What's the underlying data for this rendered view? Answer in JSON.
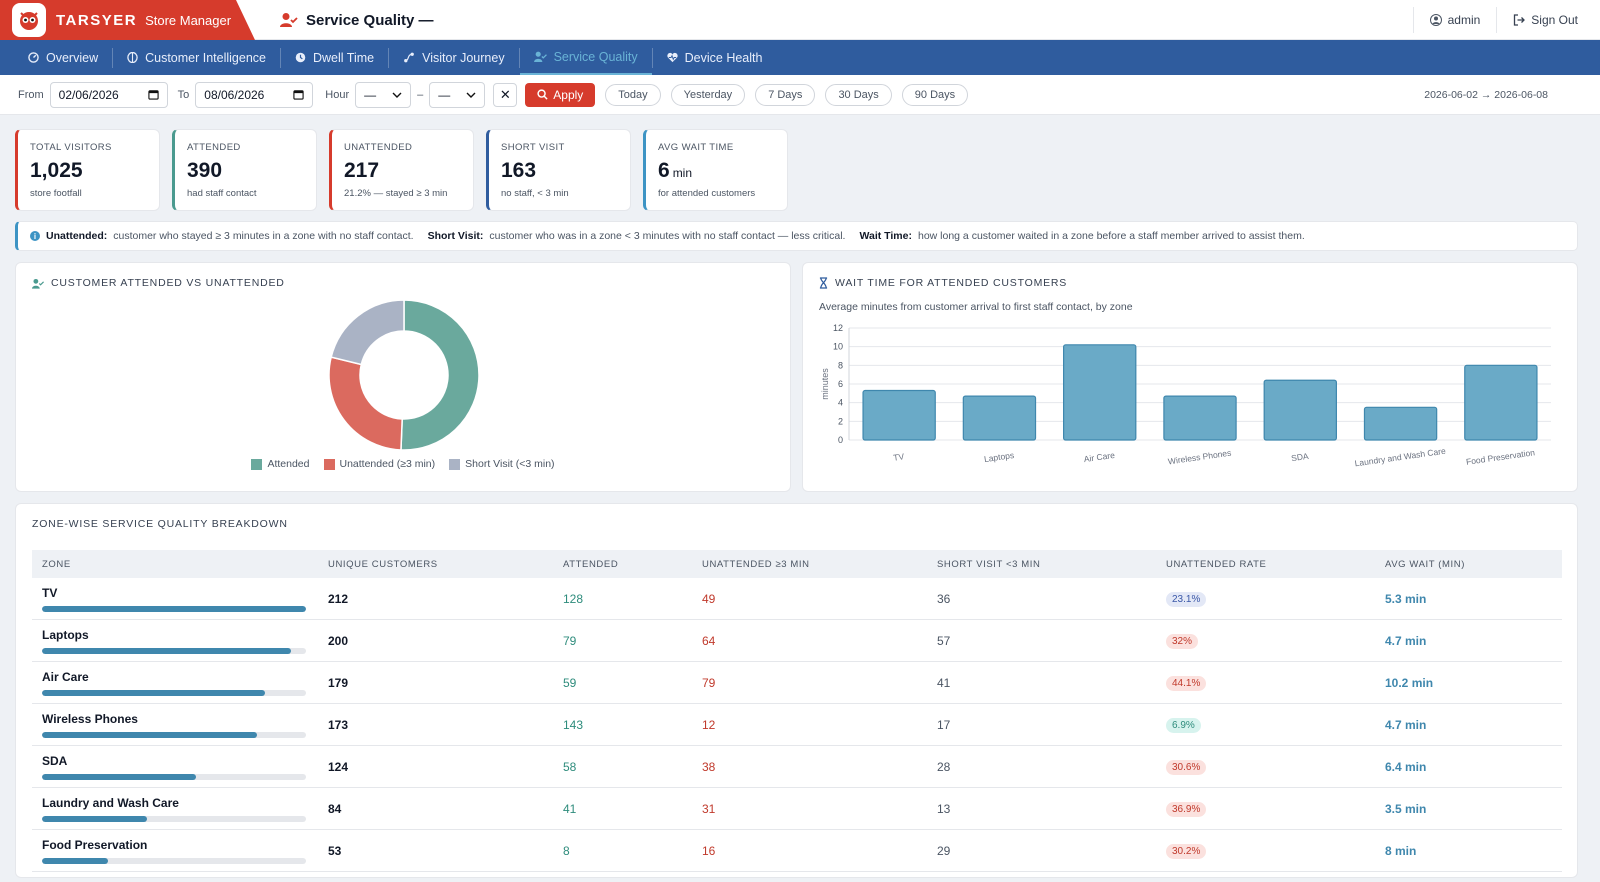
{
  "header": {
    "brand_name": "TARSYER",
    "brand_sub": "Store Manager",
    "page_title": "Service Quality —",
    "user_label": "admin",
    "signout_label": "Sign Out"
  },
  "nav": {
    "items": [
      {
        "label": "Overview",
        "icon": "dashboard-icon"
      },
      {
        "label": "Customer Intelligence",
        "icon": "brain-icon"
      },
      {
        "label": "Dwell Time",
        "icon": "clock-icon"
      },
      {
        "label": "Visitor Journey",
        "icon": "route-icon"
      },
      {
        "label": "Service Quality",
        "icon": "user-check-icon",
        "active": true
      },
      {
        "label": "Device Health",
        "icon": "heart-pulse-icon"
      }
    ]
  },
  "filters": {
    "from_label": "From",
    "from_value": "02/06/2026",
    "to_label": "To",
    "to_value": "08/06/2026",
    "hour_label": "Hour",
    "hour_from": "—",
    "hour_sep": "–",
    "hour_to": "—",
    "clear_label": "✕",
    "apply_label": "Apply",
    "quick": [
      "Today",
      "Yesterday",
      "7 Days",
      "30 Days",
      "90 Days"
    ],
    "range_readout": "2026-06-02 → 2026-06-08"
  },
  "kpis": [
    {
      "label": "TOTAL VISITORS",
      "value": "1,025",
      "unit": "",
      "sub": "store footfall",
      "color": "#d63b2c"
    },
    {
      "label": "ATTENDED",
      "value": "390",
      "unit": "",
      "sub": "had staff contact",
      "color": "#4a9a8f"
    },
    {
      "label": "UNATTENDED",
      "value": "217",
      "unit": "",
      "sub": "21.2% — stayed ≥ 3 min",
      "color": "#d63b2c"
    },
    {
      "label": "SHORT VISIT",
      "value": "163",
      "unit": "",
      "sub": "no staff, < 3 min",
      "color": "#2f5c9e"
    },
    {
      "label": "AVG WAIT TIME",
      "value": "6",
      "unit": "min",
      "sub": "for attended customers",
      "color": "#3d94c4"
    }
  ],
  "info": {
    "t1": "Unattended:",
    "d1": "customer who stayed ≥ 3 minutes in a zone with no staff contact.",
    "t2": "Short Visit:",
    "d2": "customer who was in a zone < 3 minutes with no staff contact — less critical.",
    "t3": "Wait Time:",
    "d3": "how long a customer waited in a zone before a staff member arrived to assist them."
  },
  "donut_panel": {
    "title": "CUSTOMER ATTENDED VS UNATTENDED"
  },
  "wait_panel": {
    "title": "WAIT TIME FOR ATTENDED CUSTOMERS",
    "subtitle": "Average minutes from customer arrival to first staff contact, by zone"
  },
  "chart_data": [
    {
      "type": "pie",
      "donut": true,
      "categories": [
        "Attended",
        "Unattended (≥3 min)",
        "Short Visit (<3 min)"
      ],
      "values": [
        390,
        217,
        163
      ],
      "colors": [
        "#6aa99d",
        "#db6a5f",
        "#aab3c5"
      ],
      "legend": "bottom"
    },
    {
      "type": "bar",
      "categories": [
        "TV",
        "Laptops",
        "Air Care",
        "Wireless Phones",
        "SDA",
        "Laundry and Wash Care",
        "Food Preservation"
      ],
      "values": [
        5.3,
        4.7,
        10.2,
        4.7,
        6.4,
        3.5,
        8
      ],
      "ylabel": "minutes",
      "ylim": [
        0,
        12
      ],
      "yticks": [
        0,
        2,
        4,
        6,
        8,
        10,
        12
      ],
      "grid": true,
      "color": "#6aaac7"
    }
  ],
  "table": {
    "title": "ZONE-WISE SERVICE QUALITY BREAKDOWN",
    "headers": [
      "ZONE",
      "UNIQUE CUSTOMERS",
      "ATTENDED",
      "UNATTENDED ≥3 MIN",
      "SHORT VISIT <3 MIN",
      "UNATTENDED RATE",
      "AVG WAIT (MIN)"
    ],
    "rows": [
      {
        "zone": "TV",
        "unique": "212",
        "attended": "128",
        "unattended": "49",
        "short": "36",
        "rate": "23.1%",
        "rate_level": "mid",
        "wait": "5.3 min",
        "share": 1.0
      },
      {
        "zone": "Laptops",
        "unique": "200",
        "attended": "79",
        "unattended": "64",
        "short": "57",
        "rate": "32%",
        "rate_level": "high",
        "wait": "4.7 min",
        "share": 0.943
      },
      {
        "zone": "Air Care",
        "unique": "179",
        "attended": "59",
        "unattended": "79",
        "short": "41",
        "rate": "44.1%",
        "rate_level": "high",
        "wait": "10.2 min",
        "share": 0.844
      },
      {
        "zone": "Wireless Phones",
        "unique": "173",
        "attended": "143",
        "unattended": "12",
        "short": "17",
        "rate": "6.9%",
        "rate_level": "low",
        "wait": "4.7 min",
        "share": 0.816
      },
      {
        "zone": "SDA",
        "unique": "124",
        "attended": "58",
        "unattended": "38",
        "short": "28",
        "rate": "30.6%",
        "rate_level": "high",
        "wait": "6.4 min",
        "share": 0.585
      },
      {
        "zone": "Laundry and Wash Care",
        "unique": "84",
        "attended": "41",
        "unattended": "31",
        "short": "13",
        "rate": "36.9%",
        "rate_level": "high",
        "wait": "3.5 min",
        "share": 0.396
      },
      {
        "zone": "Food Preservation",
        "unique": "53",
        "attended": "8",
        "unattended": "16",
        "short": "29",
        "rate": "30.2%",
        "rate_level": "high",
        "wait": "8 min",
        "share": 0.25
      }
    ]
  }
}
